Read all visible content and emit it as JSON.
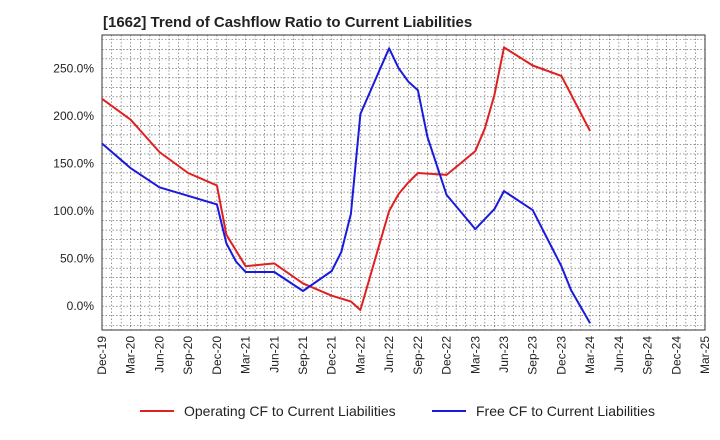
{
  "title": "[1662]  Trend of Cashflow Ratio to Current Liabilities",
  "chart_data": {
    "type": "line",
    "title": "[1662]  Trend of Cashflow Ratio to Current Liabilities",
    "xlabel": "",
    "ylabel": "",
    "x_ticks": [
      "Dec-19",
      "Mar-20",
      "Jun-20",
      "Sep-20",
      "Dec-20",
      "Mar-21",
      "Jun-21",
      "Sep-21",
      "Dec-21",
      "Mar-22",
      "Jun-22",
      "Sep-22",
      "Dec-22",
      "Mar-23",
      "Jun-23",
      "Sep-23",
      "Dec-23",
      "Mar-24",
      "Jun-24",
      "Sep-24",
      "Dec-24",
      "Mar-25"
    ],
    "y_ticks": [
      "0.0%",
      "50.0%",
      "100.0%",
      "150.0%",
      "200.0%",
      "250.0%"
    ],
    "y_tick_values": [
      0,
      50,
      100,
      150,
      200,
      250
    ],
    "ylim": [
      -25,
      285
    ],
    "grid": true,
    "legend_position": "bottom",
    "series": [
      {
        "name": "Operating CF to Current Liabilities",
        "color": "#e02020",
        "points": [
          [
            "Dec-19",
            218
          ],
          [
            "Mar-20",
            196
          ],
          [
            "Jun-20",
            162
          ],
          [
            "Sep-20",
            140
          ],
          [
            "Dec-20",
            127
          ],
          [
            "Jan-21",
            75
          ],
          [
            "Mar-21",
            42
          ],
          [
            "Jun-21",
            45
          ],
          [
            "Sep-21",
            24
          ],
          [
            "Dec-21",
            11
          ],
          [
            "Feb-22",
            5
          ],
          [
            "Mar-22",
            -4
          ],
          [
            "Jun-22",
            100
          ],
          [
            "Jul-22",
            118
          ],
          [
            "Aug-22",
            130
          ],
          [
            "Sep-22",
            140
          ],
          [
            "Dec-22",
            138
          ],
          [
            "Mar-23",
            163
          ],
          [
            "Apr-23",
            187
          ],
          [
            "May-23",
            222
          ],
          [
            "Jun-23",
            272
          ],
          [
            "Sep-23",
            253
          ],
          [
            "Dec-23",
            242
          ],
          [
            "Mar-24",
            184
          ]
        ]
      },
      {
        "name": "Free CF to Current Liabilities",
        "color": "#1a1adc",
        "points": [
          [
            "Dec-19",
            171
          ],
          [
            "Mar-20",
            145
          ],
          [
            "Jun-20",
            125
          ],
          [
            "Sep-20",
            116
          ],
          [
            "Dec-20",
            107
          ],
          [
            "Jan-21",
            66
          ],
          [
            "Feb-21",
            47
          ],
          [
            "Mar-21",
            36
          ],
          [
            "Jun-21",
            36
          ],
          [
            "Sep-21",
            16
          ],
          [
            "Dec-21",
            37
          ],
          [
            "Jan-22",
            57
          ],
          [
            "Feb-22",
            97
          ],
          [
            "Mar-22",
            202
          ],
          [
            "Jun-22",
            271
          ],
          [
            "Jul-22",
            250
          ],
          [
            "Aug-22",
            236
          ],
          [
            "Sep-22",
            227
          ],
          [
            "Oct-22",
            178
          ],
          [
            "Dec-22",
            117
          ],
          [
            "Mar-23",
            81
          ],
          [
            "May-23",
            102
          ],
          [
            "Jun-23",
            121
          ],
          [
            "Sep-23",
            101
          ],
          [
            "Dec-23",
            42
          ],
          [
            "Jan-24",
            17
          ],
          [
            "Mar-24",
            -18
          ]
        ]
      }
    ]
  }
}
